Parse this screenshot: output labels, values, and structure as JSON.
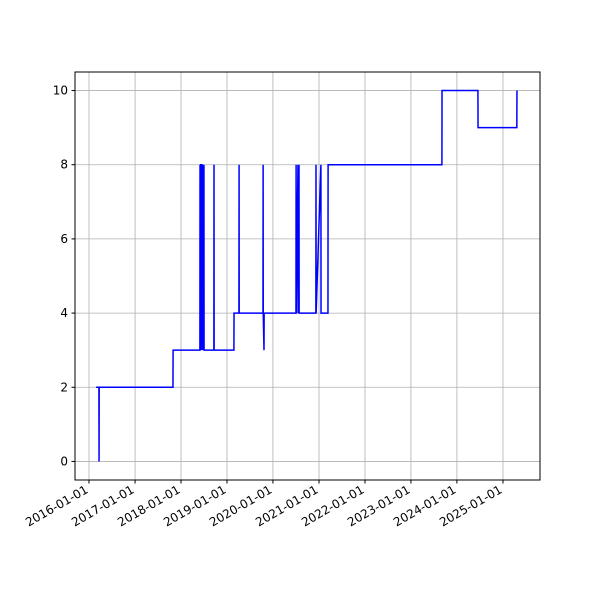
{
  "chart_data": {
    "type": "line",
    "series": [
      {
        "color": "#0000ff",
        "x": [
          "2016-02-26",
          "2016-03-20",
          "2016-03-21",
          "2016-03-22",
          "2017-10-29",
          "2017-10-30",
          "2018-05-31",
          "2018-06-01",
          "2018-06-05",
          "2018-06-06",
          "2018-06-16",
          "2018-06-17",
          "2018-06-25",
          "2018-06-26",
          "2018-07-02",
          "2018-07-03",
          "2018-09-19",
          "2018-09-20",
          "2018-09-21",
          "2019-02-25",
          "2019-02-26",
          "2019-04-06",
          "2019-04-07",
          "2019-04-08",
          "2019-10-14",
          "2019-10-15",
          "2019-10-16",
          "2019-10-22",
          "2019-10-23",
          "2020-07-02",
          "2020-07-03",
          "2020-07-04",
          "2020-07-18",
          "2020-07-19",
          "2020-07-26",
          "2020-07-27",
          "2020-12-07",
          "2020-12-08",
          "2020-12-09",
          "2021-01-16",
          "2021-01-17",
          "2021-03-13",
          "2021-03-14",
          "2023-09-04",
          "2023-09-05",
          "2024-06-16",
          "2024-06-17",
          "2025-04-21",
          "2025-04-22"
        ],
        "values": [
          2,
          2,
          0,
          2,
          2,
          3,
          3,
          8,
          3,
          8,
          8,
          3,
          8,
          3,
          8,
          3,
          3,
          8,
          3,
          3,
          4,
          4,
          8,
          4,
          4,
          8,
          4,
          3,
          4,
          4,
          8,
          4,
          8,
          4,
          8,
          4,
          4,
          8,
          4,
          8,
          4,
          4,
          8,
          8,
          10,
          10,
          9,
          9,
          10
        ]
      }
    ],
    "xlim": [
      "2015-09-12",
      "2025-10-22"
    ],
    "xticks": [
      "2016-01-01",
      "2017-01-01",
      "2018-01-01",
      "2019-01-01",
      "2020-01-01",
      "2021-01-01",
      "2022-01-01",
      "2023-01-01",
      "2024-01-01",
      "2025-01-01"
    ],
    "ylim": [
      -0.5,
      10.5
    ],
    "yticks": [
      0,
      2,
      4,
      6,
      8,
      10
    ],
    "grid": true
  }
}
